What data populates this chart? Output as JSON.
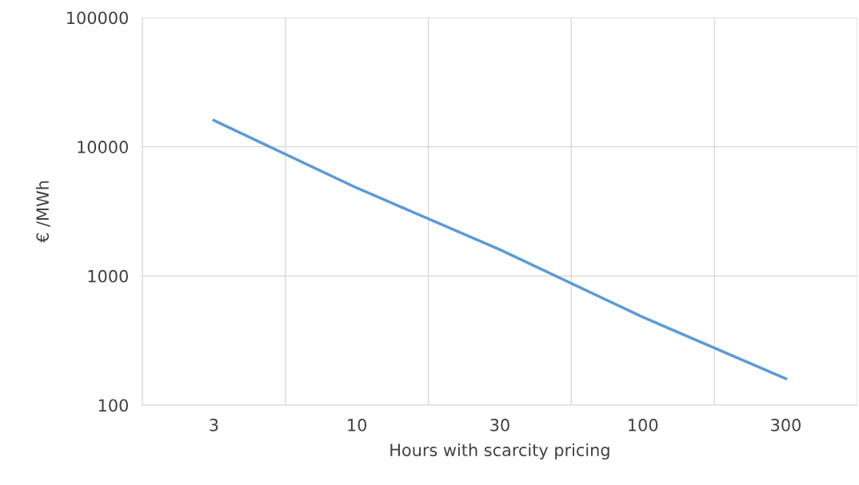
{
  "chart_data": {
    "type": "line",
    "xlabel": "Hours with scarcity pricing",
    "ylabel": "€ /MWh",
    "categories": [
      "3",
      "10",
      "30",
      "100",
      "300"
    ],
    "series": [
      {
        "color": "#5b9bd5",
        "values": [
          16000,
          4800,
          1600,
          480,
          160
        ]
      }
    ],
    "log": "y",
    "ylim": [
      100,
      100000
    ],
    "yticks": [
      100,
      1000,
      10000,
      100000
    ],
    "grid": true,
    "marker": "none",
    "line_style": "solid"
  }
}
